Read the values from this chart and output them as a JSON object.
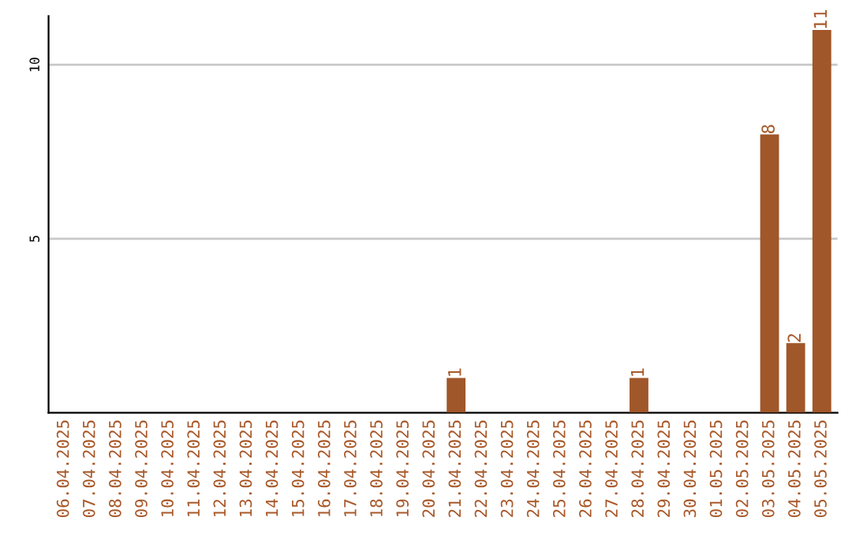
{
  "chart_data": {
    "type": "bar",
    "categories": [
      "06.04.2025",
      "07.04.2025",
      "08.04.2025",
      "09.04.2025",
      "10.04.2025",
      "11.04.2025",
      "12.04.2025",
      "13.04.2025",
      "14.04.2025",
      "15.04.2025",
      "16.04.2025",
      "17.04.2025",
      "18.04.2025",
      "19.04.2025",
      "20.04.2025",
      "21.04.2025",
      "22.04.2025",
      "23.04.2025",
      "24.04.2025",
      "25.04.2025",
      "26.04.2025",
      "27.04.2025",
      "28.04.2025",
      "29.04.2025",
      "30.04.2025",
      "01.05.2025",
      "02.05.2025",
      "03.05.2025",
      "04.05.2025",
      "05.05.2025"
    ],
    "values": [
      0,
      0,
      0,
      0,
      0,
      0,
      0,
      0,
      0,
      0,
      0,
      0,
      0,
      0,
      0,
      1,
      0,
      0,
      0,
      0,
      0,
      0,
      1,
      0,
      0,
      0,
      0,
      8,
      2,
      11
    ],
    "value_labels": [
      null,
      null,
      null,
      null,
      null,
      null,
      null,
      null,
      null,
      null,
      null,
      null,
      null,
      null,
      null,
      "1",
      null,
      null,
      null,
      null,
      null,
      null,
      "1",
      null,
      null,
      null,
      null,
      "8",
      "2",
      "11"
    ],
    "color": "#a0572a",
    "ylim": [
      0,
      11.4
    ],
    "yticks": [
      5,
      10
    ],
    "grid": "y",
    "legend": false
  }
}
